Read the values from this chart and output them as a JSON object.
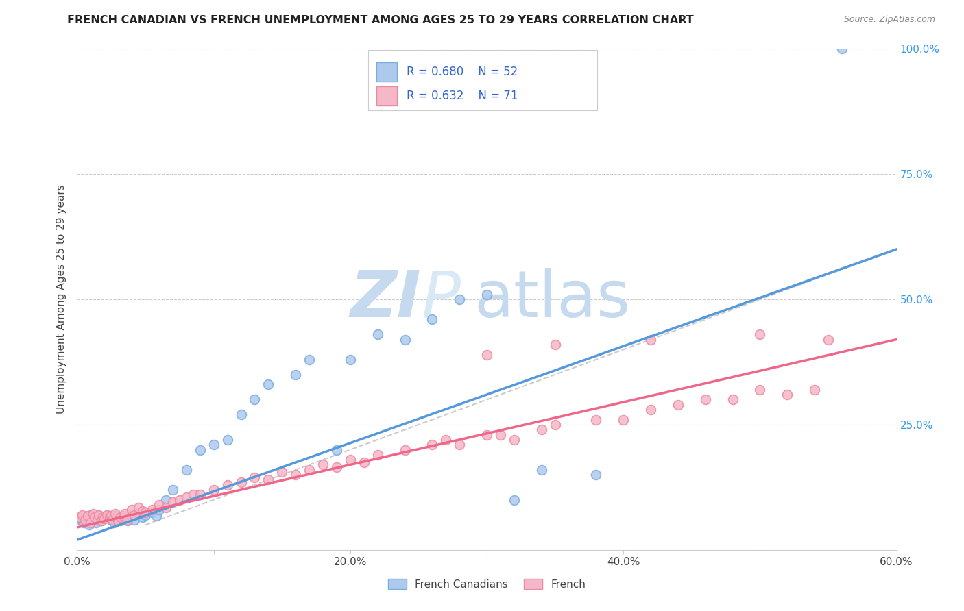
{
  "title": "FRENCH CANADIAN VS FRENCH UNEMPLOYMENT AMONG AGES 25 TO 29 YEARS CORRELATION CHART",
  "source": "Source: ZipAtlas.com",
  "ylabel": "Unemployment Among Ages 25 to 29 years",
  "xmin": 0.0,
  "xmax": 0.6,
  "ymin": 0.0,
  "ymax": 1.0,
  "xticks": [
    0.0,
    0.1,
    0.2,
    0.3,
    0.4,
    0.5,
    0.6
  ],
  "yticks": [
    0.0,
    0.25,
    0.5,
    0.75,
    1.0
  ],
  "ytick_labels": [
    "",
    "25.0%",
    "50.0%",
    "75.0%",
    "100.0%"
  ],
  "xtick_labels": [
    "0.0%",
    "",
    "20.0%",
    "",
    "40.0%",
    "",
    "60.0%"
  ],
  "grid_color": "#cccccc",
  "background_color": "#ffffff",
  "watermark_zi": "ZI",
  "watermark_p": "P",
  "watermark_atlas": "atlas",
  "watermark_color": "#c5d9ef",
  "fc_color_fill": "#aec9ee",
  "fc_color_edge": "#7aade0",
  "fr_color_fill": "#f5b8c8",
  "fr_color_edge": "#ee8aa0",
  "fc_line_color": "#5599dd",
  "fr_line_color": "#ee6688",
  "ref_line_color": "#cccccc",
  "legend_r1": "R = 0.680",
  "legend_n1": "N = 52",
  "legend_r2": "R = 0.632",
  "legend_n2": "N = 71",
  "legend_text_color": "#3366cc",
  "fc_scatter_x": [
    0.003,
    0.005,
    0.007,
    0.009,
    0.01,
    0.011,
    0.012,
    0.014,
    0.015,
    0.016,
    0.018,
    0.02,
    0.022,
    0.024,
    0.025,
    0.027,
    0.028,
    0.03,
    0.032,
    0.034,
    0.035,
    0.037,
    0.04,
    0.042,
    0.045,
    0.048,
    0.05,
    0.055,
    0.058,
    0.06,
    0.065,
    0.07,
    0.08,
    0.09,
    0.1,
    0.11,
    0.12,
    0.13,
    0.14,
    0.16,
    0.17,
    0.19,
    0.2,
    0.22,
    0.24,
    0.26,
    0.28,
    0.3,
    0.32,
    0.34,
    0.38,
    0.56
  ],
  "fc_scatter_y": [
    0.06,
    0.055,
    0.065,
    0.05,
    0.07,
    0.06,
    0.065,
    0.055,
    0.06,
    0.068,
    0.058,
    0.062,
    0.07,
    0.065,
    0.06,
    0.055,
    0.068,
    0.06,
    0.058,
    0.062,
    0.065,
    0.058,
    0.07,
    0.06,
    0.072,
    0.065,
    0.07,
    0.075,
    0.068,
    0.08,
    0.1,
    0.12,
    0.16,
    0.2,
    0.21,
    0.22,
    0.27,
    0.3,
    0.33,
    0.35,
    0.38,
    0.2,
    0.38,
    0.43,
    0.42,
    0.46,
    0.5,
    0.51,
    0.1,
    0.16,
    0.15,
    1.0
  ],
  "fr_scatter_x": [
    0.002,
    0.004,
    0.006,
    0.008,
    0.01,
    0.012,
    0.013,
    0.015,
    0.016,
    0.018,
    0.019,
    0.02,
    0.022,
    0.024,
    0.025,
    0.026,
    0.028,
    0.03,
    0.032,
    0.034,
    0.035,
    0.037,
    0.04,
    0.042,
    0.045,
    0.048,
    0.05,
    0.055,
    0.06,
    0.065,
    0.07,
    0.075,
    0.08,
    0.085,
    0.09,
    0.1,
    0.11,
    0.12,
    0.13,
    0.14,
    0.15,
    0.16,
    0.17,
    0.18,
    0.19,
    0.2,
    0.21,
    0.22,
    0.24,
    0.26,
    0.27,
    0.28,
    0.3,
    0.31,
    0.32,
    0.34,
    0.35,
    0.38,
    0.4,
    0.42,
    0.44,
    0.46,
    0.48,
    0.5,
    0.52,
    0.54,
    0.3,
    0.35,
    0.42,
    0.5,
    0.55
  ],
  "fr_scatter_y": [
    0.065,
    0.07,
    0.06,
    0.068,
    0.055,
    0.072,
    0.065,
    0.06,
    0.07,
    0.058,
    0.065,
    0.062,
    0.07,
    0.065,
    0.068,
    0.06,
    0.072,
    0.058,
    0.065,
    0.068,
    0.072,
    0.06,
    0.08,
    0.07,
    0.085,
    0.078,
    0.075,
    0.08,
    0.09,
    0.085,
    0.095,
    0.1,
    0.105,
    0.11,
    0.11,
    0.12,
    0.13,
    0.135,
    0.145,
    0.14,
    0.155,
    0.15,
    0.16,
    0.17,
    0.165,
    0.18,
    0.175,
    0.19,
    0.2,
    0.21,
    0.22,
    0.21,
    0.23,
    0.23,
    0.22,
    0.24,
    0.25,
    0.26,
    0.26,
    0.28,
    0.29,
    0.3,
    0.3,
    0.32,
    0.31,
    0.32,
    0.39,
    0.41,
    0.42,
    0.43,
    0.42
  ],
  "fc_trend_x": [
    0.0,
    0.6
  ],
  "fc_trend_y": [
    0.02,
    0.6
  ],
  "fr_trend_x": [
    0.0,
    0.6
  ],
  "fr_trend_y": [
    0.045,
    0.42
  ],
  "ref_line_x": [
    0.05,
    1.0
  ],
  "ref_line_y": [
    0.05,
    1.0
  ]
}
